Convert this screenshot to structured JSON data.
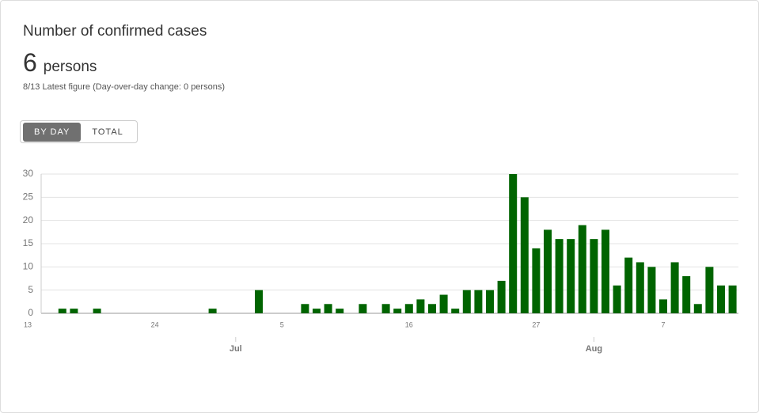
{
  "header": {
    "title": "Number of confirmed cases",
    "value": 6,
    "unit": "persons",
    "date_note": "8/13 Latest figure",
    "change_note": "(Day-over-day change: 0 persons)"
  },
  "toggle": {
    "options": [
      "BY DAY",
      "TOTAL"
    ],
    "active": 0
  },
  "chart_data": {
    "type": "bar",
    "color": "#006400",
    "grid": true,
    "categories": [
      "13",
      null,
      null,
      null,
      null,
      null,
      null,
      null,
      null,
      null,
      null,
      "24",
      null,
      null,
      null,
      null,
      null,
      null,
      null,
      null,
      null,
      null,
      "5",
      null,
      null,
      null,
      null,
      null,
      null,
      null,
      null,
      null,
      null,
      "16",
      null,
      null,
      null,
      null,
      null,
      null,
      null,
      null,
      null,
      null,
      "27",
      null,
      null,
      null,
      null,
      null,
      null,
      null,
      null,
      null,
      null,
      "7",
      null,
      null,
      null,
      null,
      null,
      null
    ],
    "month_categories": [
      null,
      null,
      null,
      null,
      null,
      null,
      null,
      null,
      null,
      null,
      null,
      null,
      null,
      null,
      null,
      null,
      null,
      null,
      "Jul",
      null,
      null,
      null,
      null,
      null,
      null,
      null,
      null,
      null,
      null,
      null,
      null,
      null,
      null,
      null,
      null,
      null,
      null,
      null,
      null,
      null,
      null,
      null,
      null,
      null,
      null,
      null,
      null,
      null,
      null,
      "Aug",
      null,
      null,
      null,
      null,
      null,
      null,
      null,
      null,
      null,
      null,
      null,
      null
    ],
    "values": [
      0,
      0,
      0,
      1,
      1,
      0,
      1,
      0,
      0,
      0,
      0,
      0,
      0,
      0,
      0,
      0,
      1,
      0,
      0,
      0,
      5,
      0,
      0,
      0,
      2,
      1,
      2,
      1,
      0,
      2,
      0,
      2,
      1,
      2,
      3,
      2,
      4,
      1,
      5,
      5,
      5,
      7,
      30,
      25,
      14,
      18,
      16,
      16,
      19,
      16,
      18,
      6,
      12,
      11,
      10,
      3,
      11,
      8,
      2,
      10,
      6,
      6
    ],
    "ylim": [
      0,
      30
    ],
    "yticks": [
      0,
      5,
      10,
      15,
      20,
      25,
      30
    ]
  }
}
